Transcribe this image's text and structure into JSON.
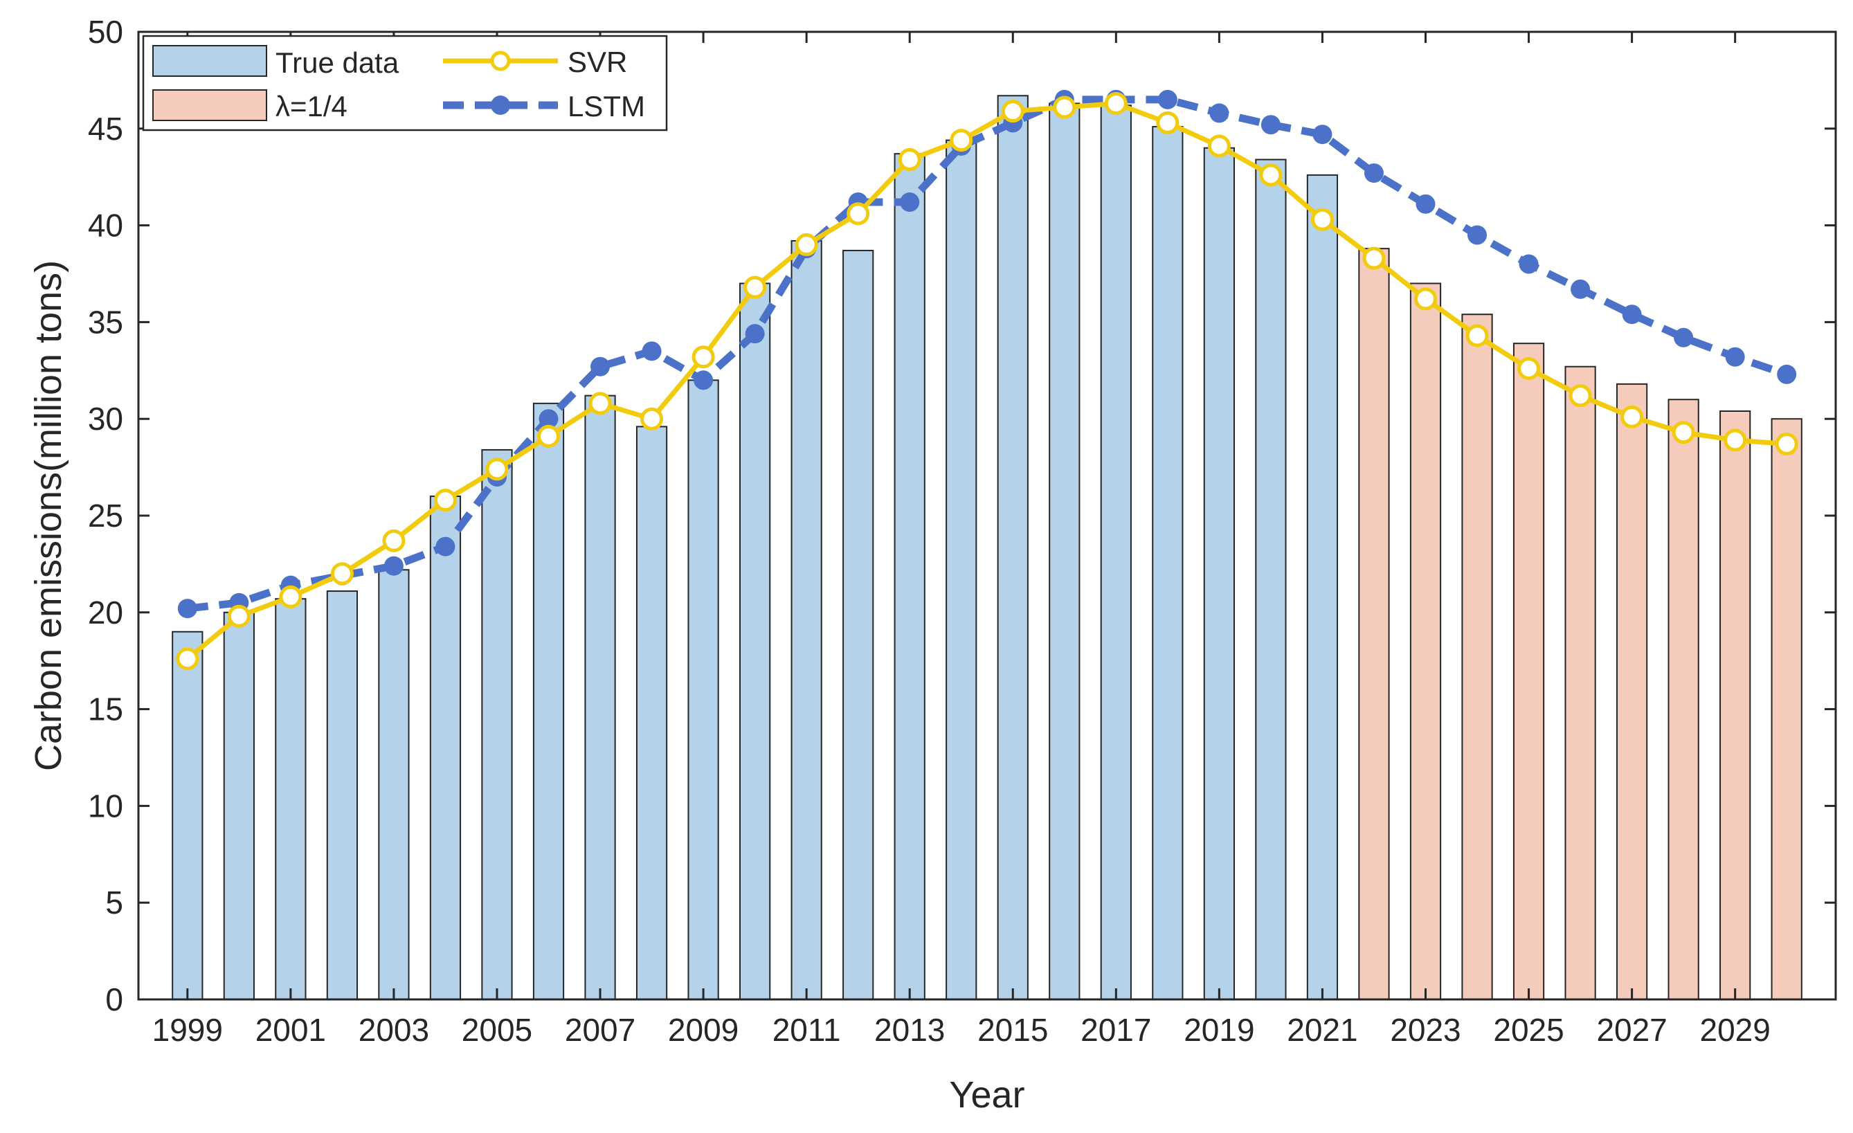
{
  "chart_data": {
    "type": "bar",
    "xlabel": "Year",
    "ylabel": "Carbon emissions(million tons)",
    "ylim": [
      0,
      50
    ],
    "yticks": [
      0,
      5,
      10,
      15,
      20,
      25,
      30,
      35,
      40,
      45,
      50
    ],
    "x": [
      1999,
      2000,
      2001,
      2002,
      2003,
      2004,
      2005,
      2006,
      2007,
      2008,
      2009,
      2010,
      2011,
      2012,
      2013,
      2014,
      2015,
      2016,
      2017,
      2018,
      2019,
      2020,
      2021,
      2022,
      2023,
      2024,
      2025,
      2026,
      2027,
      2028,
      2029,
      2030
    ],
    "xtick_labels": [
      "1999",
      "2001",
      "2003",
      "2005",
      "2007",
      "2009",
      "2011",
      "2013",
      "2015",
      "2017",
      "2019",
      "2021",
      "2023",
      "2025",
      "2027",
      "2029"
    ],
    "legend_placement": "top-left",
    "grid": false,
    "bars": [
      {
        "name": "True data",
        "color": "#b4d3ea",
        "x": [
          1999,
          2000,
          2001,
          2002,
          2003,
          2004,
          2005,
          2006,
          2007,
          2008,
          2009,
          2010,
          2011,
          2012,
          2013,
          2014,
          2015,
          2016,
          2017,
          2018,
          2019,
          2020,
          2021
        ],
        "values": [
          19.0,
          20.0,
          20.7,
          21.1,
          22.2,
          26.0,
          28.4,
          30.8,
          31.2,
          29.6,
          32.0,
          37.0,
          39.2,
          38.7,
          43.7,
          44.4,
          46.7,
          46.3,
          46.2,
          45.1,
          44.0,
          43.4,
          42.6
        ]
      },
      {
        "name": "λ=1/4",
        "color": "#f5cbbb",
        "x": [
          2022,
          2023,
          2024,
          2025,
          2026,
          2027,
          2028,
          2029,
          2030
        ],
        "values": [
          38.8,
          37.0,
          35.4,
          33.9,
          32.7,
          31.8,
          31.0,
          30.4,
          30.0
        ]
      }
    ],
    "series": [
      {
        "name": "SVR",
        "color": "#f2cc0c",
        "style": "solid",
        "marker": "open-circle",
        "values": [
          17.6,
          19.8,
          20.8,
          22.0,
          23.7,
          25.8,
          27.4,
          29.1,
          30.8,
          30.0,
          33.2,
          36.8,
          39.0,
          40.6,
          43.4,
          44.4,
          45.9,
          46.1,
          46.3,
          45.3,
          44.1,
          42.6,
          40.3,
          38.3,
          36.2,
          34.3,
          32.6,
          31.2,
          30.1,
          29.3,
          28.9,
          28.7
        ]
      },
      {
        "name": "LSTM",
        "color": "#4b72c8",
        "style": "dashed",
        "marker": "filled-circle",
        "values": [
          20.2,
          20.5,
          21.4,
          21.9,
          22.4,
          23.4,
          27.0,
          30.0,
          32.7,
          33.5,
          32.0,
          34.4,
          38.8,
          41.2,
          41.2,
          44.1,
          45.3,
          46.5,
          46.5,
          46.5,
          45.8,
          45.2,
          44.7,
          42.7,
          41.1,
          39.5,
          38.0,
          36.7,
          35.4,
          34.2,
          33.2,
          32.3
        ]
      }
    ]
  }
}
